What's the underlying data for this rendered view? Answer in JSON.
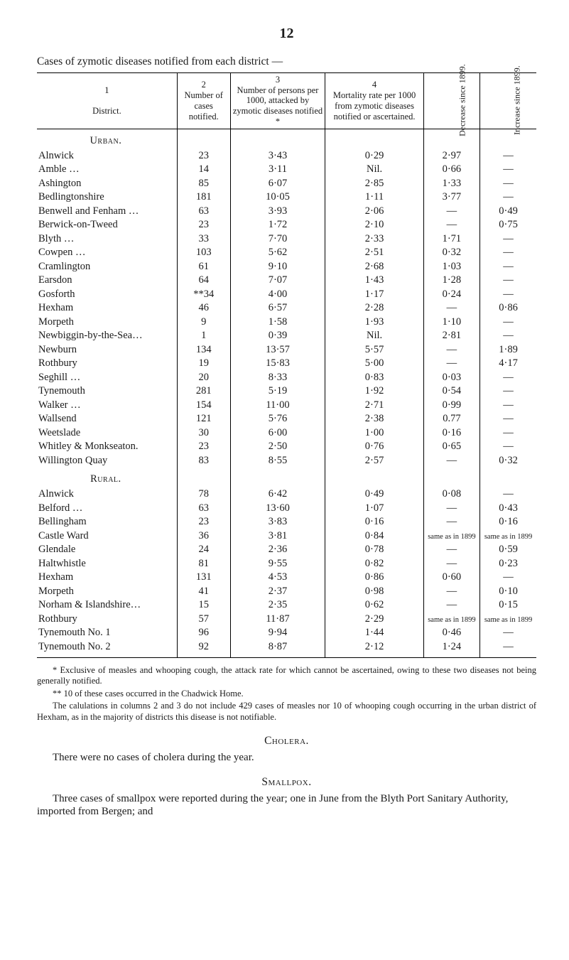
{
  "page_number": "12",
  "table_title": "Cases of zymotic diseases notified from each district —",
  "columns": {
    "c1": {
      "num": "1",
      "label": "District."
    },
    "c2": {
      "num": "2",
      "label": "Number of cases notified."
    },
    "c3": {
      "num": "3",
      "label": "Number of per­sons per 1000, attacked by zymotic diseases notified *"
    },
    "c4": {
      "num": "4",
      "label": "Mortality rate per 1000 from zymotic diseases notified or ascertained."
    },
    "c5": {
      "label": "Decrease since 1899."
    },
    "c6": {
      "label": "Increase since 1899."
    }
  },
  "sections": [
    {
      "heading": "Urban.",
      "rows": [
        {
          "d": "Alnwick",
          "n": "23",
          "r": "3·43",
          "m": "0·29",
          "dec": "2·97",
          "inc": "—"
        },
        {
          "d": "Amble …",
          "n": "14",
          "r": "3·11",
          "m": "Nil.",
          "dec": "0·66",
          "inc": "—"
        },
        {
          "d": "Ashington",
          "n": "85",
          "r": "6·07",
          "m": "2·85",
          "dec": "1·33",
          "inc": "—"
        },
        {
          "d": "Bedlingtonshire",
          "n": "181",
          "r": "10·05",
          "m": "1·11",
          "dec": "3·77",
          "inc": "—"
        },
        {
          "d": "Benwell and Fenham …",
          "n": "63",
          "r": "3·93",
          "m": "2·06",
          "dec": "—",
          "inc": "0·49"
        },
        {
          "d": "Berwick-on-Tweed",
          "n": "23",
          "r": "1·72",
          "m": "2·10",
          "dec": "—",
          "inc": "0·75"
        },
        {
          "d": "Blyth …",
          "n": "33",
          "r": "7·70",
          "m": "2·33",
          "dec": "1·71",
          "inc": "—"
        },
        {
          "d": "Cowpen …",
          "n": "103",
          "r": "5·62",
          "m": "2·51",
          "dec": "0·32",
          "inc": "—"
        },
        {
          "d": "Cramlington",
          "n": "61",
          "r": "9·10",
          "m": "2·68",
          "dec": "1·03",
          "inc": "—"
        },
        {
          "d": "Earsdon",
          "n": "64",
          "r": "7·07",
          "m": "1·43",
          "dec": "1·28",
          "inc": "—"
        },
        {
          "d": "Gosforth",
          "n": "**34",
          "r": "4·00",
          "m": "1·17",
          "dec": "0·24",
          "inc": "—"
        },
        {
          "d": "Hexham",
          "n": "46",
          "r": "6·57",
          "m": "2·28",
          "dec": "—",
          "inc": "0·86"
        },
        {
          "d": "Morpeth",
          "n": "9",
          "r": "1·58",
          "m": "1·93",
          "dec": "1·10",
          "inc": "—"
        },
        {
          "d": "Newbiggin-by-the-Sea…",
          "n": "1",
          "r": "0·39",
          "m": "Nil.",
          "dec": "2·81",
          "inc": "—"
        },
        {
          "d": "Newburn",
          "n": "134",
          "r": "13·57",
          "m": "5·57",
          "dec": "—",
          "inc": "1·89"
        },
        {
          "d": "Rothbury",
          "n": "19",
          "r": "15·83",
          "m": "5·00",
          "dec": "—",
          "inc": "4·17"
        },
        {
          "d": "Seghill …",
          "n": "20",
          "r": "8·33",
          "m": "0·83",
          "dec": "0·03",
          "inc": "—"
        },
        {
          "d": "Tynemouth",
          "n": "281",
          "r": "5·19",
          "m": "1·92",
          "dec": "0·54",
          "inc": "—"
        },
        {
          "d": "Walker …",
          "n": "154",
          "r": "11·00",
          "m": "2·71",
          "dec": "0·99",
          "inc": "—"
        },
        {
          "d": "Wallsend",
          "n": "121",
          "r": "5·76",
          "m": "2·38",
          "dec": "0.77",
          "inc": "—"
        },
        {
          "d": "Weetslade",
          "n": "30",
          "r": "6·00",
          "m": "1·00",
          "dec": "0·16",
          "inc": "—"
        },
        {
          "d": "Whitley & Monkseaton.",
          "n": "23",
          "r": "2·50",
          "m": "0·76",
          "dec": "0·65",
          "inc": "—"
        },
        {
          "d": "Willington Quay",
          "n": "83",
          "r": "8·55",
          "m": "2·57",
          "dec": "—",
          "inc": "0·32"
        }
      ]
    },
    {
      "heading": "Rural.",
      "rows": [
        {
          "d": "Alnwick",
          "n": "78",
          "r": "6·42",
          "m": "0·49",
          "dec": "0·08",
          "inc": "—"
        },
        {
          "d": "Belford …",
          "n": "63",
          "r": "13·60",
          "m": "1·07",
          "dec": "—",
          "inc": "0·43"
        },
        {
          "d": "Bellingham",
          "n": "23",
          "r": "3·83",
          "m": "0·16",
          "dec": "—",
          "inc": "0·16"
        },
        {
          "d": "Castle Ward",
          "n": "36",
          "r": "3·81",
          "m": "0·84",
          "dec_small": "same as in 1899",
          "inc_small": "same as in 1899"
        },
        {
          "d": "Glendale",
          "n": "24",
          "r": "2·36",
          "m": "0·78",
          "dec": "—",
          "inc": "0·59"
        },
        {
          "d": "Haltwhistle",
          "n": "81",
          "r": "9·55",
          "m": "0·82",
          "dec": "—",
          "inc": "0·23"
        },
        {
          "d": "Hexham",
          "n": "131",
          "r": "4·53",
          "m": "0·86",
          "dec": "0·60",
          "inc": "—"
        },
        {
          "d": "Morpeth",
          "n": "41",
          "r": "2·37",
          "m": "0·98",
          "dec": "—",
          "inc": "0·10"
        },
        {
          "d": "Norham & Islandshire…",
          "n": "15",
          "r": "2·35",
          "m": "0·62",
          "dec": "—",
          "inc": "0·15"
        },
        {
          "d": "Rothbury",
          "n": "57",
          "r": "11·87",
          "m": "2·29",
          "dec_small": "same as in 1899",
          "inc_small": "same as in 1899"
        },
        {
          "d": "Tynemouth No. 1",
          "n": "96",
          "r": "9·94",
          "m": "1·44",
          "dec": "0·46",
          "inc": "—"
        },
        {
          "d": "Tynemouth No. 2",
          "n": "92",
          "r": "8·87",
          "m": "2·12",
          "dec": "1·24",
          "inc": "—"
        }
      ]
    }
  ],
  "footnotes": {
    "f1": "* Exclusive of measles and whooping cough, the attack rate for which cannot be ascertained, owing to these two diseases not being generally notified.",
    "f2": "** 10 of these cases occurred in the Chadwick Home.",
    "f3": "The calulations in columns 2 and 3 do not include 429 cases of measles nor 10 of whooping cough occurring in the urban district of Hexham, as in the majority of districts this disease is not notifiable."
  },
  "cholera_head": "Cholera.",
  "cholera_body": "There were no cases of cholera during the year.",
  "smallpox_head": "Smallpox.",
  "smallpox_body": "Three cases of smallpox were reported during the year; one in June from the Blyth Port Sanitary Authority, imported from Bergen; and"
}
